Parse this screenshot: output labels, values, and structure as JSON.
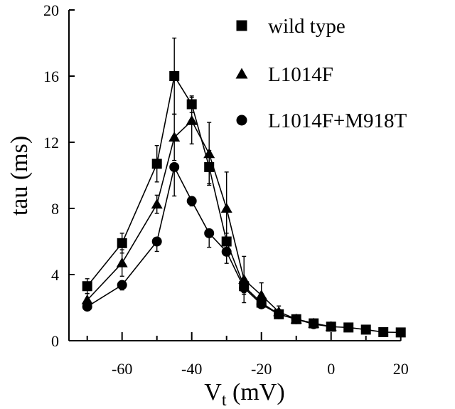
{
  "chart_data": {
    "type": "line",
    "xlabel": "V",
    "xlabel_sub": "t",
    "xlabel_unit": " (mV)",
    "ylabel": "tau (ms)",
    "xlim": [
      -70,
      20
    ],
    "ylim": [
      0,
      20
    ],
    "xticks": [
      -70,
      -60,
      -50,
      -40,
      -30,
      -20,
      -10,
      0,
      10,
      20
    ],
    "xtick_labels": [
      "-60",
      "-40",
      "-20",
      "0",
      "20"
    ],
    "xtick_label_values": [
      -60,
      -40,
      -20,
      0,
      20
    ],
    "yticks": [
      0,
      4,
      8,
      12,
      16,
      20
    ],
    "ytick_labels": [
      "0",
      "4",
      "8",
      "12",
      "16",
      "20"
    ],
    "grid": false,
    "legend_position": "top-right",
    "series": [
      {
        "name": "wild type",
        "marker": "square",
        "x": [
          -70,
          -60,
          -50,
          -45,
          -40,
          -35,
          -30,
          -25,
          -20,
          -15,
          -10,
          -5,
          0,
          5,
          10,
          15,
          20
        ],
        "y": [
          3.3,
          5.9,
          10.7,
          16.0,
          14.3,
          10.5,
          6.0,
          3.3,
          2.3,
          1.6,
          1.3,
          1.05,
          0.85,
          0.8,
          0.67,
          0.52,
          0.5
        ],
        "err": [
          0.45,
          0.6,
          1.1,
          2.3,
          0.5,
          1.0,
          0.5,
          0.4,
          0.2,
          0.1,
          0.1,
          0.05,
          0.05,
          0.05,
          0.05,
          0.05,
          0.05
        ]
      },
      {
        "name": "L1014F",
        "marker": "triangle",
        "x": [
          -70,
          -60,
          -50,
          -45,
          -40,
          -35,
          -30,
          -25,
          -20,
          -15,
          -10,
          -5,
          0
        ],
        "y": [
          2.46,
          4.7,
          8.25,
          12.3,
          13.3,
          11.3,
          8.0,
          3.7,
          2.75,
          1.75,
          1.3,
          1.05,
          0.85
        ],
        "err": [
          0.4,
          0.8,
          0.55,
          1.4,
          1.4,
          1.9,
          2.2,
          1.4,
          0.75,
          0.35,
          0.1,
          0.05,
          0.05
        ]
      },
      {
        "name": "L1014F+M918T",
        "marker": "circle",
        "x": [
          -70,
          -60,
          -50,
          -45,
          -40,
          -35,
          -30,
          -25,
          -20,
          -15,
          -10,
          -5,
          0
        ],
        "y": [
          2.06,
          3.37,
          6.0,
          10.5,
          8.45,
          6.5,
          5.38,
          3.2,
          2.2,
          1.6,
          1.3,
          1.0,
          0.85
        ],
        "err": [
          0.2,
          0.3,
          0.6,
          1.75,
          0.3,
          0.85,
          0.7,
          0.4,
          0.15,
          0.1,
          0.05,
          0.05,
          0.05
        ]
      }
    ]
  }
}
